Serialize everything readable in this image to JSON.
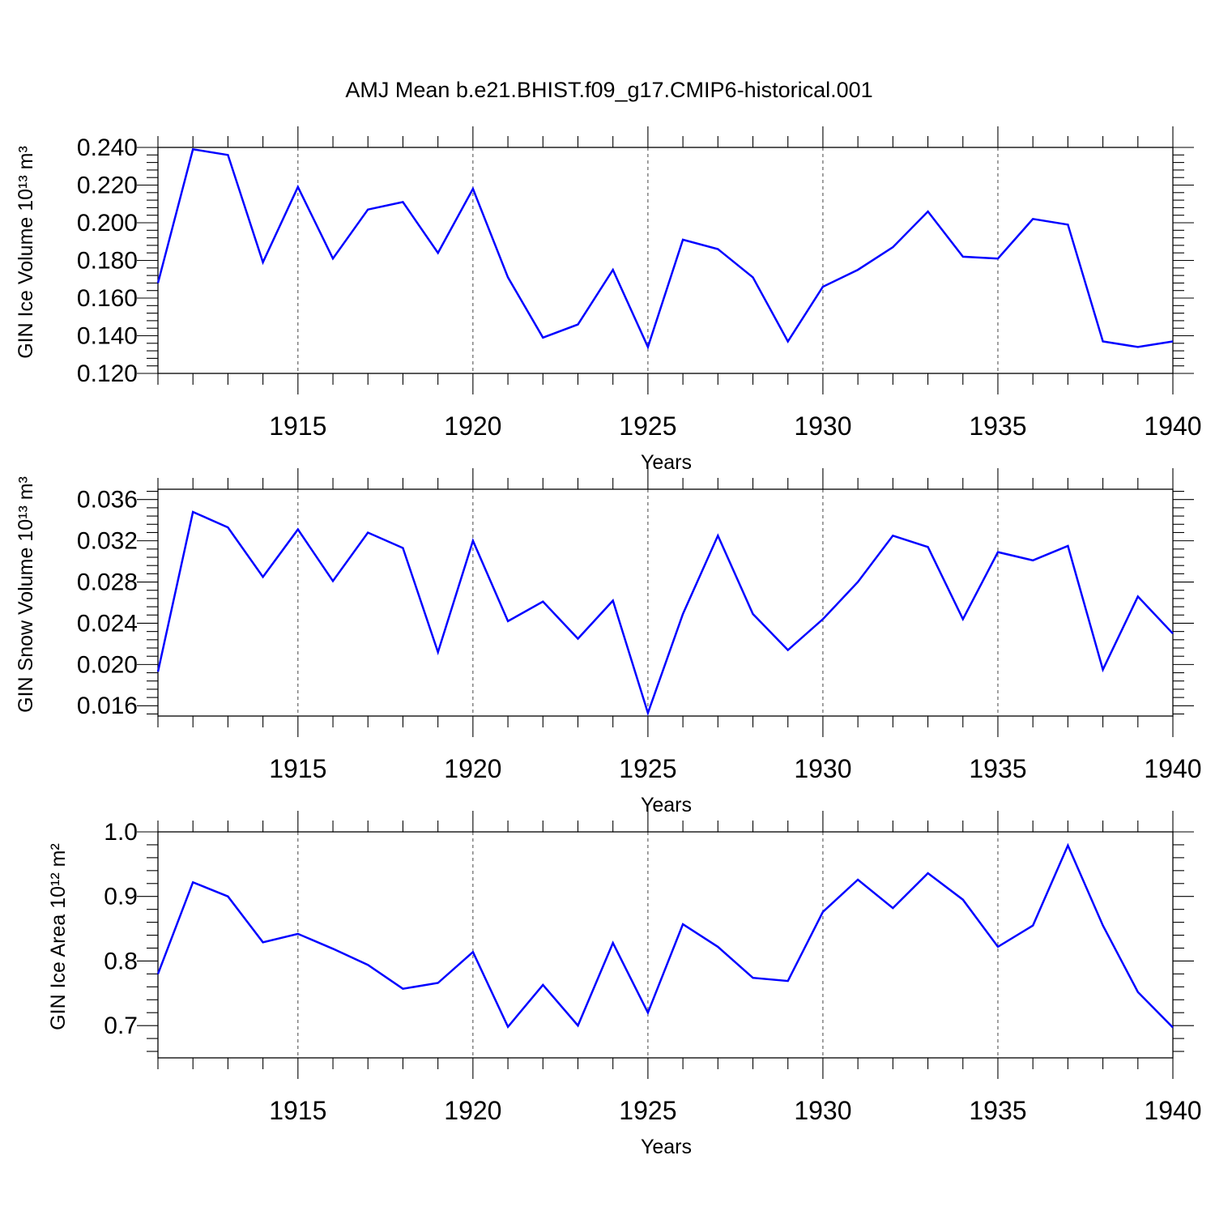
{
  "title": "AMJ Mean b.e21.BHIST.f09_g17.CMIP6-historical.001",
  "chart_data": [
    {
      "type": "line",
      "ylabel": "GIN Ice Volume 10¹³ m³",
      "xlabel": "Years",
      "xlim": [
        1911,
        1940
      ],
      "ylim": [
        0.12,
        0.24
      ],
      "x_ticks": [
        1915,
        1920,
        1925,
        1930,
        1935,
        1940
      ],
      "y_ticks": [
        0.12,
        0.14,
        0.16,
        0.18,
        0.2,
        0.22,
        0.24
      ],
      "y_tick_labels": [
        "0.120",
        "0.140",
        "0.160",
        "0.180",
        "0.200",
        "0.220",
        "0.240"
      ],
      "x": [
        1911,
        1912,
        1913,
        1914,
        1915,
        1916,
        1917,
        1918,
        1919,
        1920,
        1921,
        1922,
        1923,
        1924,
        1925,
        1926,
        1927,
        1928,
        1929,
        1930,
        1931,
        1932,
        1933,
        1934,
        1935,
        1936,
        1937,
        1938,
        1939,
        1940
      ],
      "values": [
        0.168,
        0.239,
        0.236,
        0.179,
        0.219,
        0.181,
        0.207,
        0.211,
        0.184,
        0.218,
        0.171,
        0.139,
        0.146,
        0.175,
        0.134,
        0.191,
        0.186,
        0.171,
        0.137,
        0.166,
        0.175,
        0.187,
        0.206,
        0.182,
        0.181,
        0.202,
        0.199,
        0.137,
        0.134,
        0.137
      ],
      "color": "#0000ff",
      "grid": "vertical dashed at x ticks"
    },
    {
      "type": "line",
      "ylabel": "GIN Snow Volume 10¹³ m³",
      "xlabel": "Years",
      "xlim": [
        1911,
        1940
      ],
      "ylim": [
        0.015,
        0.037
      ],
      "x_ticks": [
        1915,
        1920,
        1925,
        1930,
        1935,
        1940
      ],
      "y_ticks": [
        0.016,
        0.02,
        0.024,
        0.028,
        0.032,
        0.036
      ],
      "y_tick_labels": [
        "0.016",
        "0.020",
        "0.024",
        "0.028",
        "0.032",
        "0.036"
      ],
      "x": [
        1911,
        1912,
        1913,
        1914,
        1915,
        1916,
        1917,
        1918,
        1919,
        1920,
        1921,
        1922,
        1923,
        1924,
        1925,
        1926,
        1927,
        1928,
        1929,
        1930,
        1931,
        1932,
        1933,
        1934,
        1935,
        1936,
        1937,
        1938,
        1939,
        1940
      ],
      "values": [
        0.0193,
        0.0348,
        0.0333,
        0.0285,
        0.0331,
        0.0281,
        0.0328,
        0.0313,
        0.0212,
        0.032,
        0.0242,
        0.0261,
        0.0225,
        0.0262,
        0.0153,
        0.0249,
        0.0325,
        0.0249,
        0.0214,
        0.0244,
        0.028,
        0.0325,
        0.0314,
        0.0244,
        0.0309,
        0.0301,
        0.0315,
        0.0195,
        0.0266,
        0.023
      ],
      "color": "#0000ff",
      "grid": "vertical dashed at x ticks"
    },
    {
      "type": "line",
      "ylabel": "GIN Ice Area 10¹² m²",
      "xlabel": "Years",
      "xlim": [
        1911,
        1940
      ],
      "ylim": [
        0.65,
        1.0
      ],
      "x_ticks": [
        1915,
        1920,
        1925,
        1930,
        1935,
        1940
      ],
      "y_ticks": [
        0.7,
        0.8,
        0.9,
        1.0
      ],
      "y_tick_labels": [
        "0.7",
        "0.8",
        "0.9",
        "1.0"
      ],
      "x": [
        1911,
        1912,
        1913,
        1914,
        1915,
        1916,
        1917,
        1918,
        1919,
        1920,
        1921,
        1922,
        1923,
        1924,
        1925,
        1926,
        1927,
        1928,
        1929,
        1930,
        1931,
        1932,
        1933,
        1934,
        1935,
        1936,
        1937,
        1938,
        1939,
        1940
      ],
      "values": [
        0.78,
        0.922,
        0.9,
        0.829,
        0.842,
        0.819,
        0.794,
        0.757,
        0.766,
        0.814,
        0.698,
        0.763,
        0.7,
        0.828,
        0.72,
        0.857,
        0.822,
        0.774,
        0.769,
        0.876,
        0.926,
        0.882,
        0.936,
        0.895,
        0.822,
        0.855,
        0.979,
        0.855,
        0.752,
        0.697
      ],
      "color": "#0000ff",
      "grid": "vertical dashed at x ticks"
    }
  ]
}
